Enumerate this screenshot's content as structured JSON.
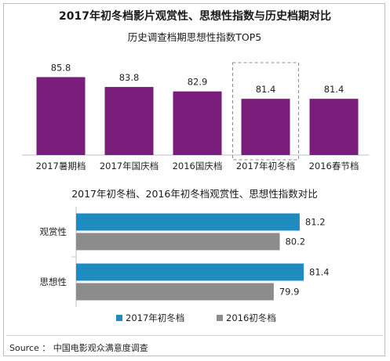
{
  "page_title": "2017年初冬档影片观赏性、思想性指数与历史档期对比",
  "source": "Source ： 中国电影观众满意度调查",
  "colors": {
    "purple": "#7b1e7b",
    "blue": "#1f8cbf",
    "gray": "#8c8c8c"
  },
  "chart_data": [
    {
      "type": "bar",
      "title": "历史调查档期思想性指数TOP5",
      "categories": [
        "2017暑期档",
        "2017年国庆档",
        "2016国庆档",
        "2017年初冬档",
        "2016春节档"
      ],
      "values": [
        85.8,
        83.8,
        82.9,
        81.4,
        81.4
      ],
      "highlight_category": "2017年初冬档",
      "ylim": [
        70,
        90
      ],
      "grid": false
    },
    {
      "type": "bar",
      "orientation": "horizontal",
      "title": "2017年初冬档、2016年初冬档观赏性、思想性指数对比",
      "categories": [
        "观赏性",
        "思想性"
      ],
      "series": [
        {
          "name": "2017年初冬档",
          "values": [
            81.2,
            81.4
          ]
        },
        {
          "name": "2016初冬档",
          "values": [
            80.2,
            79.9
          ]
        }
      ],
      "xlim": [
        70,
        82.5
      ],
      "legend": "bottom",
      "grid": false
    }
  ]
}
